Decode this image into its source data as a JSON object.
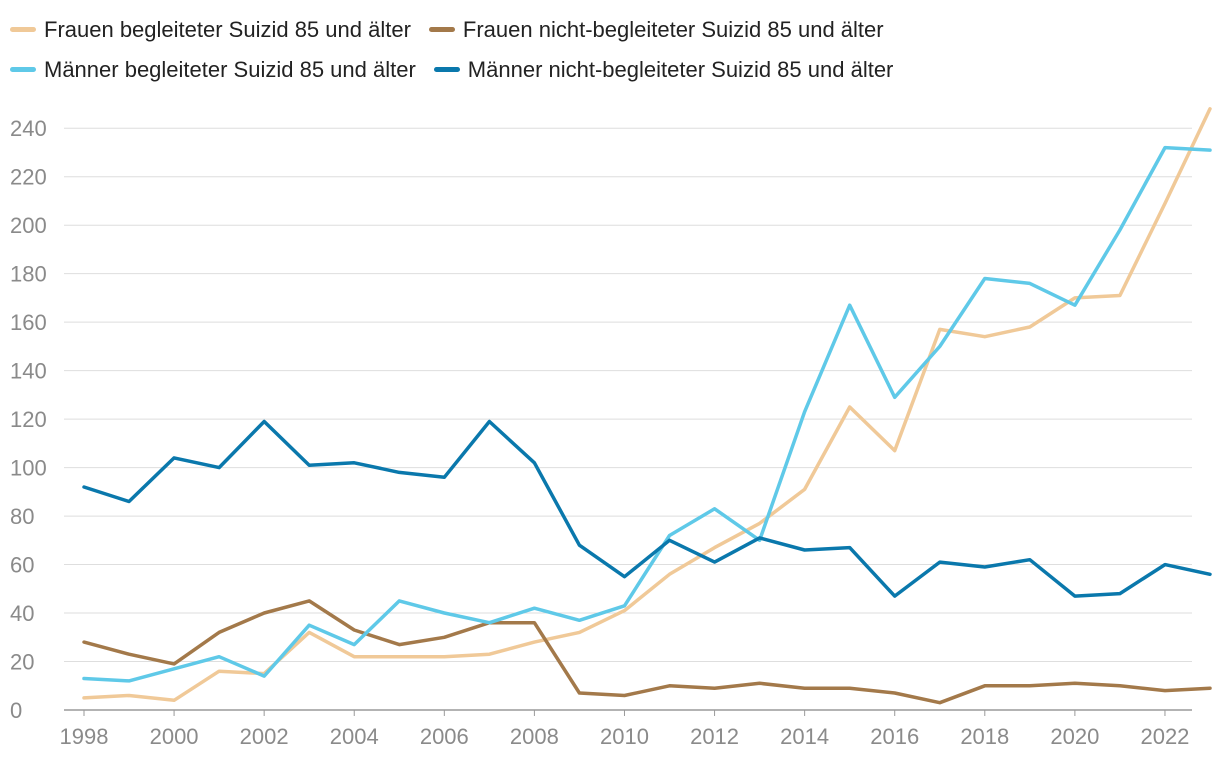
{
  "chart_data": {
    "type": "line",
    "title": "",
    "xlabel": "",
    "ylabel": "",
    "x": [
      1998,
      1999,
      2000,
      2001,
      2002,
      2003,
      2004,
      2005,
      2006,
      2007,
      2008,
      2009,
      2010,
      2011,
      2012,
      2013,
      2014,
      2015,
      2016,
      2017,
      2018,
      2019,
      2020,
      2021,
      2022,
      2023
    ],
    "x_ticks": [
      "1998",
      "2000",
      "2002",
      "2004",
      "2006",
      "2008",
      "2010",
      "2012",
      "2014",
      "2016",
      "2018",
      "2020",
      "2022"
    ],
    "y_ticks": [
      "0",
      "20",
      "40",
      "60",
      "80",
      "100",
      "120",
      "140",
      "160",
      "180",
      "200",
      "220",
      "240"
    ],
    "ylim": [
      0,
      250
    ],
    "grid": true,
    "legend_position": "top",
    "series": [
      {
        "name": "Frauen begleiteter Suizid 85 und älter",
        "color": "#f0c998",
        "values": [
          5,
          6,
          4,
          16,
          15,
          32,
          22,
          22,
          22,
          23,
          28,
          32,
          41,
          56,
          67,
          77,
          91,
          125,
          107,
          157,
          154,
          158,
          170,
          171,
          209,
          248
        ]
      },
      {
        "name": "Frauen nicht-begleiteter Suizid 85 und älter",
        "color": "#a3794a",
        "values": [
          28,
          23,
          19,
          32,
          40,
          45,
          33,
          27,
          30,
          36,
          36,
          7,
          6,
          10,
          9,
          11,
          9,
          9,
          7,
          3,
          10,
          10,
          11,
          10,
          8,
          9
        ]
      },
      {
        "name": "Männer begleiteter Suizid 85 und älter",
        "color": "#5fc9e8",
        "values": [
          13,
          12,
          17,
          22,
          14,
          35,
          27,
          45,
          40,
          36,
          42,
          37,
          43,
          72,
          83,
          70,
          123,
          167,
          129,
          150,
          178,
          176,
          167,
          198,
          232,
          231
        ]
      },
      {
        "name": "Männer nicht-begleiteter Suizid 85 und älter",
        "color": "#0a78ac",
        "values": [
          92,
          86,
          104,
          100,
          119,
          101,
          102,
          98,
          96,
          119,
          102,
          68,
          55,
          70,
          61,
          71,
          66,
          67,
          47,
          61,
          59,
          62,
          47,
          48,
          60,
          56
        ]
      }
    ]
  }
}
